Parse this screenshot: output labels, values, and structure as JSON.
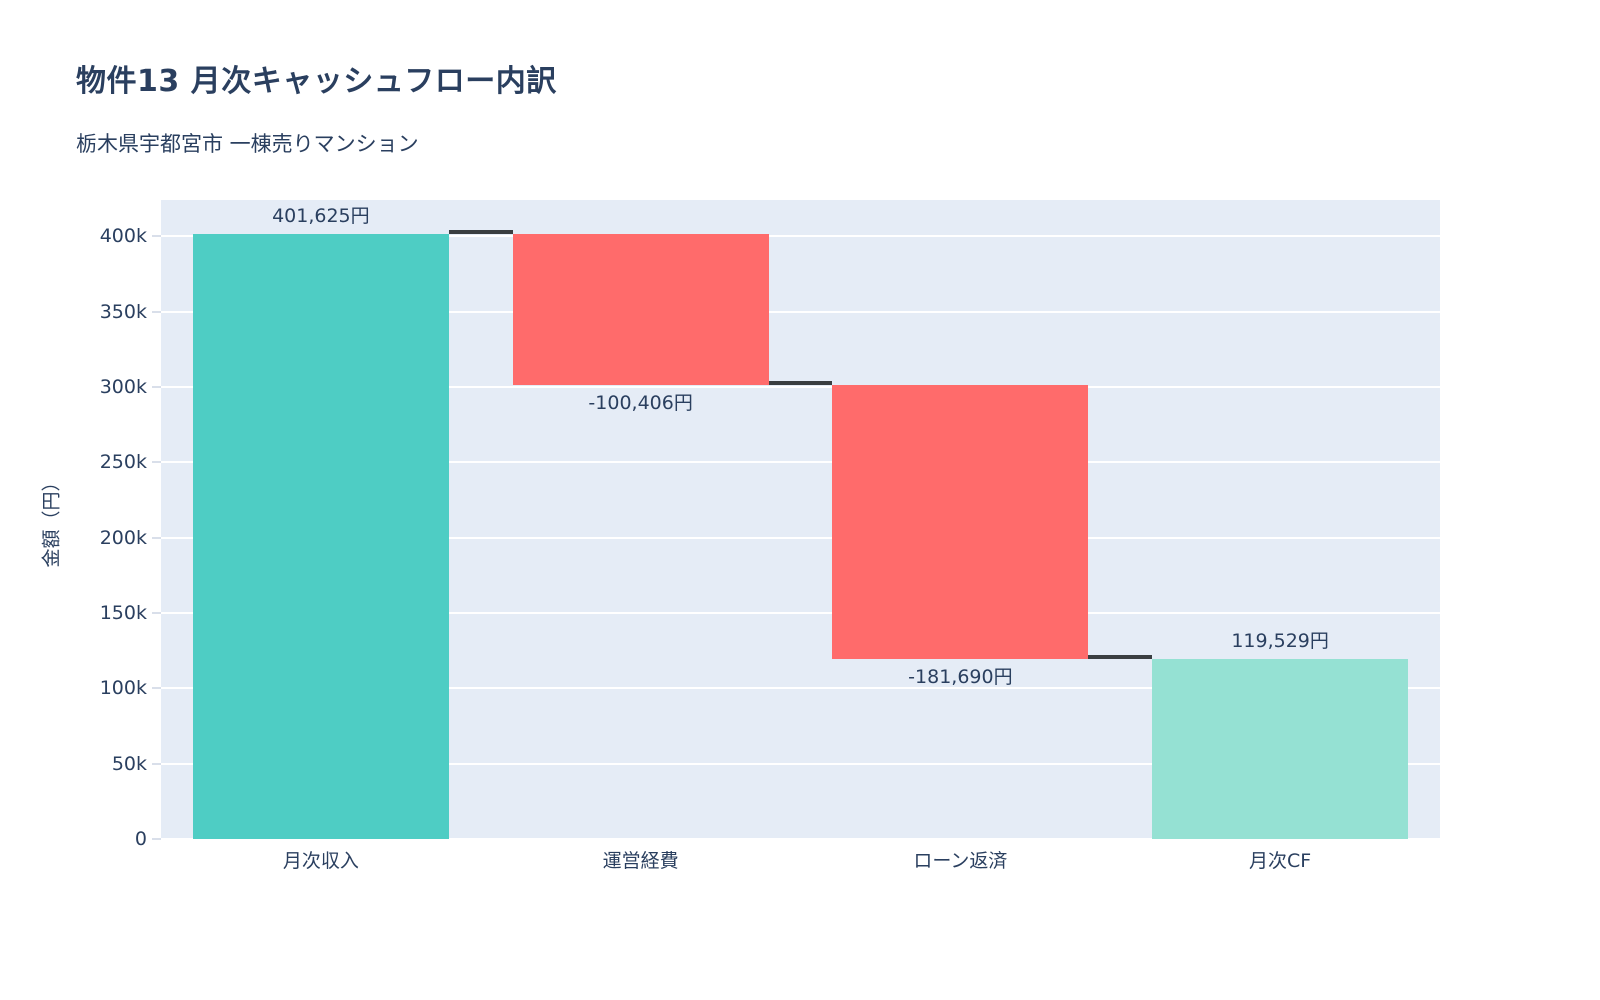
{
  "chart_data": {
    "type": "waterfall",
    "title": "物件13 月次キャッシュフロー内訳",
    "subtitle": "栃木県宇都宮市 一棟売りマンション",
    "ylabel": "金額（円）",
    "xlabel": "",
    "categories": [
      "月次収入",
      "運営経費",
      "ローン返済",
      "月次CF"
    ],
    "values": [
      401625,
      -100406,
      -181690,
      119529
    ],
    "measures": [
      "relative",
      "relative",
      "relative",
      "total"
    ],
    "cumulative_levels": [
      401625,
      301219,
      119529,
      119529
    ],
    "bar_labels": [
      "401,625円",
      "-100,406円",
      "-181,690円",
      "119,529円"
    ],
    "label_positions": [
      "above",
      "below",
      "below",
      "above"
    ],
    "ylim": [
      0,
      424000
    ],
    "ytick_step": 50000,
    "ytick_labels": [
      "0",
      "50k",
      "100k",
      "150k",
      "200k",
      "250k",
      "300k",
      "350k",
      "400k"
    ],
    "grid": true,
    "legend": "none",
    "colors": {
      "increase": "#4ECDC4",
      "decrease": "#FF6B6B",
      "total": "#95E1D3",
      "connector": "#3a3e41",
      "plot_background": "#E5ECF6",
      "page_background": "#FFFFFF",
      "gridline": "#FFFFFF",
      "tick_mark": "#d9dfea",
      "text": "#2a3f5f"
    }
  }
}
